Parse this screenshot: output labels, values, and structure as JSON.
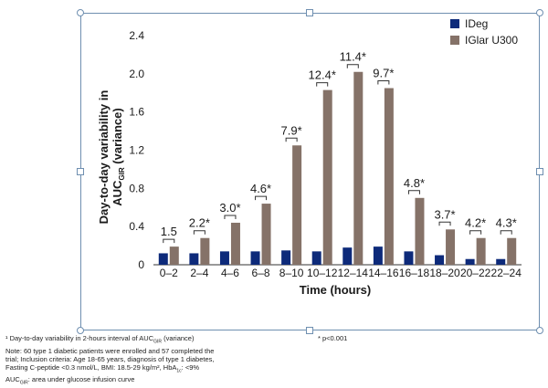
{
  "chart_data": {
    "type": "bar",
    "xlabel": "Time (hours)",
    "ylabel_line1": "Day-to-day variability in",
    "ylabel_line2": "AUC",
    "ylabel_sub": "GIR",
    "ylabel_line2_tail": " (variance)",
    "ylim": [
      0,
      2.4
    ],
    "yticks": [
      "0",
      "0.4",
      "0.8",
      "1.2",
      "1.6",
      "2.0",
      "2.4"
    ],
    "categories": [
      "0–2",
      "2–4",
      "4–6",
      "6–8",
      "8–10",
      "10–12",
      "12–14",
      "14–16",
      "16–18",
      "18–20",
      "20–22",
      "22–24"
    ],
    "series": [
      {
        "name": "IDeg",
        "color": "#0d2a7a",
        "values": [
          0.12,
          0.12,
          0.14,
          0.14,
          0.15,
          0.14,
          0.18,
          0.19,
          0.14,
          0.1,
          0.06,
          0.06
        ]
      },
      {
        "name": "IGlar U300",
        "color": "#857268",
        "values": [
          0.19,
          0.28,
          0.44,
          0.64,
          1.25,
          1.83,
          2.02,
          1.85,
          0.7,
          0.37,
          0.28,
          0.28
        ]
      }
    ],
    "annotations": [
      "1.5",
      "2.2*",
      "3.0*",
      "4.6*",
      "7.9*",
      "12.4*",
      "11.4*",
      "9.7*",
      "4.8*",
      "3.7*",
      "4.2*",
      "4.3*"
    ],
    "legend_position": "top-right",
    "grid": false
  },
  "footnotes": [
    "¹ Day-to-day variability in 2-hours interval of AUC",
    "Note: 60 type 1 diabetic patients were enrolled and 57 completed the",
    "trial; Inclusion criteria: Age 18-65 years, diagnosis of type 1 diabetes,",
    "Fasting C-peptide <0.3 nmol/L, BMI: 18.5-29 kg/m², HbA",
    "AUC"
  ],
  "footnote_parts": {
    "line1_sub": "GIR",
    "line1_tail": " (variance)",
    "line4_sub": "1c",
    "line4_tail": ": <9%",
    "line5_sub": "GIR",
    "line5_tail": ": area under glucose infusion curve"
  },
  "pvalue_note": "* p<0.001"
}
